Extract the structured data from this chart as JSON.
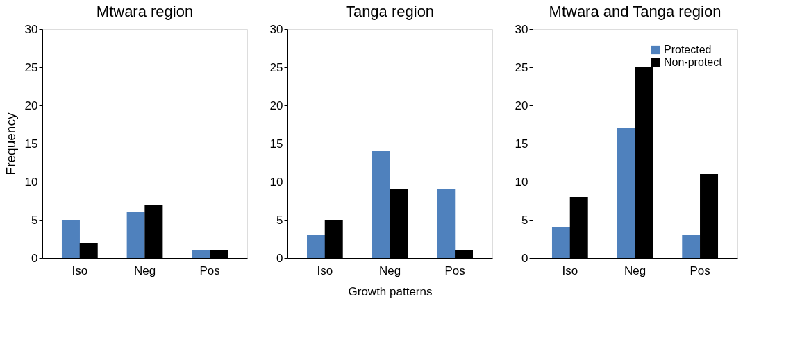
{
  "chart_data": [
    {
      "type": "bar",
      "title": "Mtwara region",
      "ylabel": "Frequency",
      "categories": [
        "Iso",
        "Neg",
        "Pos"
      ],
      "series": [
        {
          "color": "#4f81bd",
          "values": [
            5,
            6,
            1
          ]
        },
        {
          "color": "#000000",
          "values": [
            2,
            7,
            1
          ]
        }
      ],
      "ylim": [
        0,
        30
      ],
      "yticks": [
        0,
        5,
        10,
        15,
        20,
        25,
        30
      ],
      "grid": false,
      "legend": false
    },
    {
      "type": "bar",
      "title": "Tanga region",
      "xlabel": "Growth patterns",
      "categories": [
        "Iso",
        "Neg",
        "Pos"
      ],
      "series": [
        {
          "color": "#4f81bd",
          "values": [
            3,
            14,
            9
          ]
        },
        {
          "color": "#000000",
          "values": [
            5,
            9,
            1
          ]
        }
      ],
      "ylim": [
        0,
        30
      ],
      "yticks": [
        0,
        5,
        10,
        15,
        20,
        25,
        30
      ],
      "grid": false,
      "legend": false
    },
    {
      "type": "bar",
      "title": "Mtwara and Tanga region",
      "categories": [
        "Iso",
        "Neg",
        "Pos"
      ],
      "series": [
        {
          "name": "Protected",
          "color": "#4f81bd",
          "values": [
            4,
            17,
            3
          ]
        },
        {
          "name": "Non-protect",
          "color": "#000000",
          "values": [
            8,
            25,
            11
          ]
        }
      ],
      "ylim": [
        0,
        30
      ],
      "yticks": [
        0,
        5,
        10,
        15,
        20,
        25,
        30
      ],
      "grid": false,
      "legend": "top right"
    }
  ]
}
